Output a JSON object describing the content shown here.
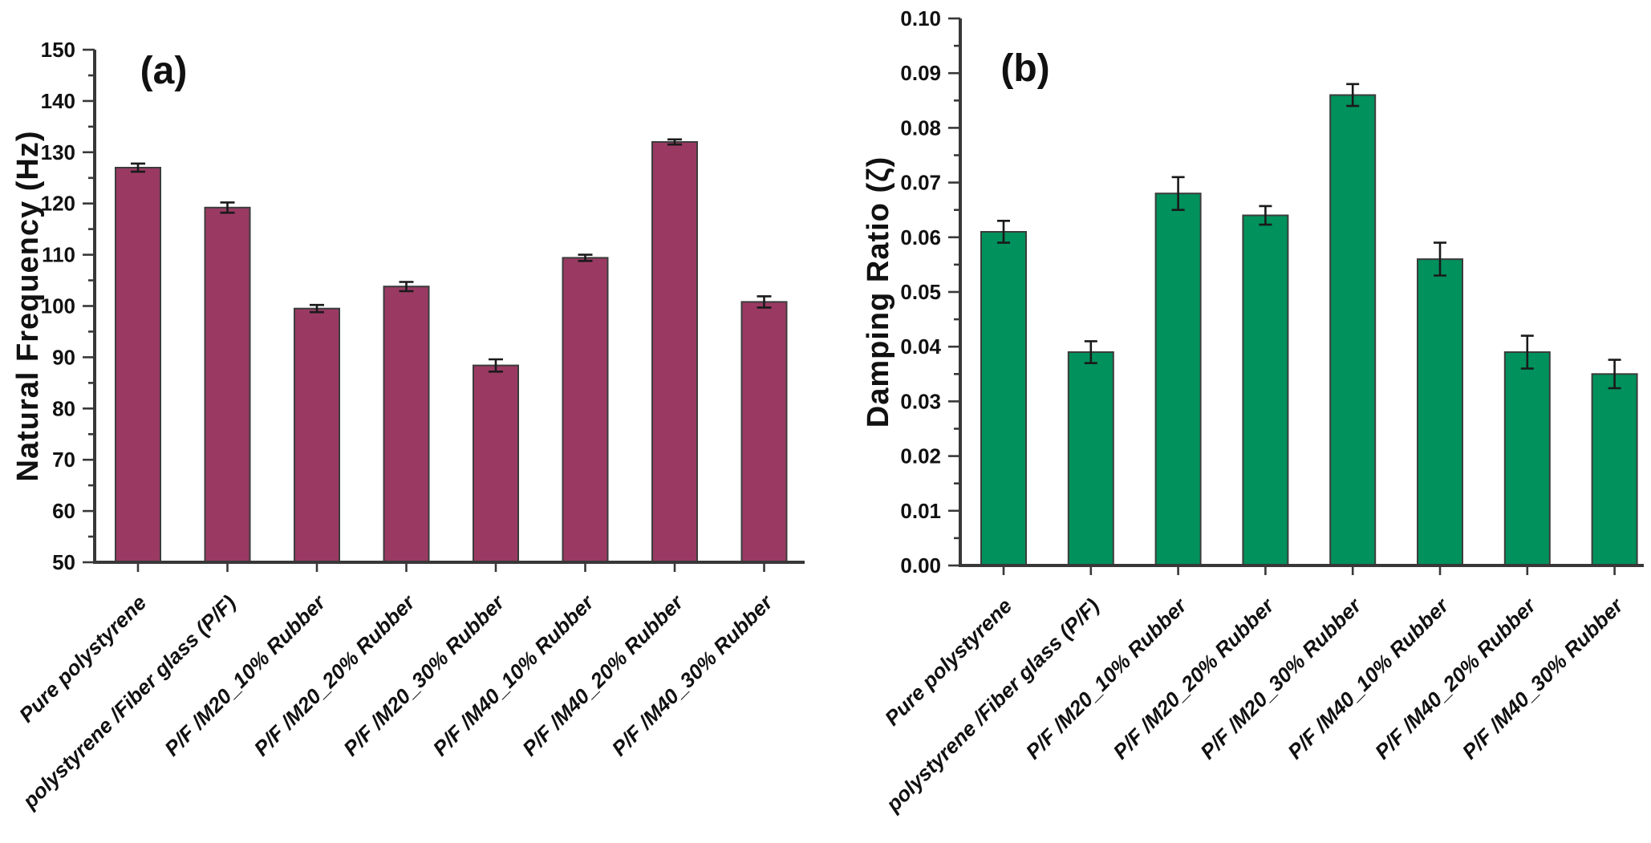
{
  "figure": {
    "background": "#ffffff",
    "text_color": "#111111",
    "axis_color": "#383838",
    "error_bar_color": "#1a1a1a"
  },
  "chart_data": [
    {
      "type": "bar",
      "panel": "a",
      "panel_label": "(a)",
      "ylabel": "Natural Frequency (Hz)",
      "xlabel": "",
      "ylim": [
        50,
        150
      ],
      "ymajor": 10,
      "yminor": 5,
      "ydecimals": 0,
      "grid": false,
      "legend": "none",
      "bar_color": "#9a3a63",
      "bar_edge": "#3c3c3c",
      "categories": [
        "Pure polystyrene",
        "polystyrene /Fiber glass (P/F)",
        "P/F /M20_10% Rubber",
        "P/F /M20_20% Rubber",
        "P/F /M20_30% Rubber",
        "P/F /M40_10% Rubber",
        "P/F /M40_20% Rubber",
        "P/F /M40_30% Rubber"
      ],
      "values": [
        127,
        119.2,
        99.5,
        103.8,
        88.4,
        109.4,
        132,
        100.8
      ],
      "errors": [
        0.8,
        1.0,
        0.7,
        0.9,
        1.2,
        0.6,
        0.5,
        1.1
      ]
    },
    {
      "type": "bar",
      "panel": "b",
      "panel_label": "(b)",
      "ylabel": "Damping Ratio (ζ)",
      "xlabel": "",
      "ylim": [
        0,
        0.1
      ],
      "ymajor": 0.01,
      "yminor": 0.005,
      "ydecimals": 2,
      "grid": false,
      "legend": "none",
      "bar_color": "#00915c",
      "bar_edge": "#3c3c3c",
      "categories": [
        "Pure polystyrene",
        "polystyrene /Fiber glass (P/F)",
        "P/F /M20_10% Rubber",
        "P/F /M20_20% Rubber",
        "P/F /M20_30% Rubber",
        "P/F /M40_10% Rubber",
        "P/F /M40_20% Rubber",
        "P/F /M40_30% Rubber"
      ],
      "values": [
        0.061,
        0.039,
        0.068,
        0.064,
        0.086,
        0.056,
        0.039,
        0.035
      ],
      "errors": [
        0.002,
        0.002,
        0.003,
        0.0017,
        0.002,
        0.003,
        0.003,
        0.0026
      ]
    }
  ]
}
